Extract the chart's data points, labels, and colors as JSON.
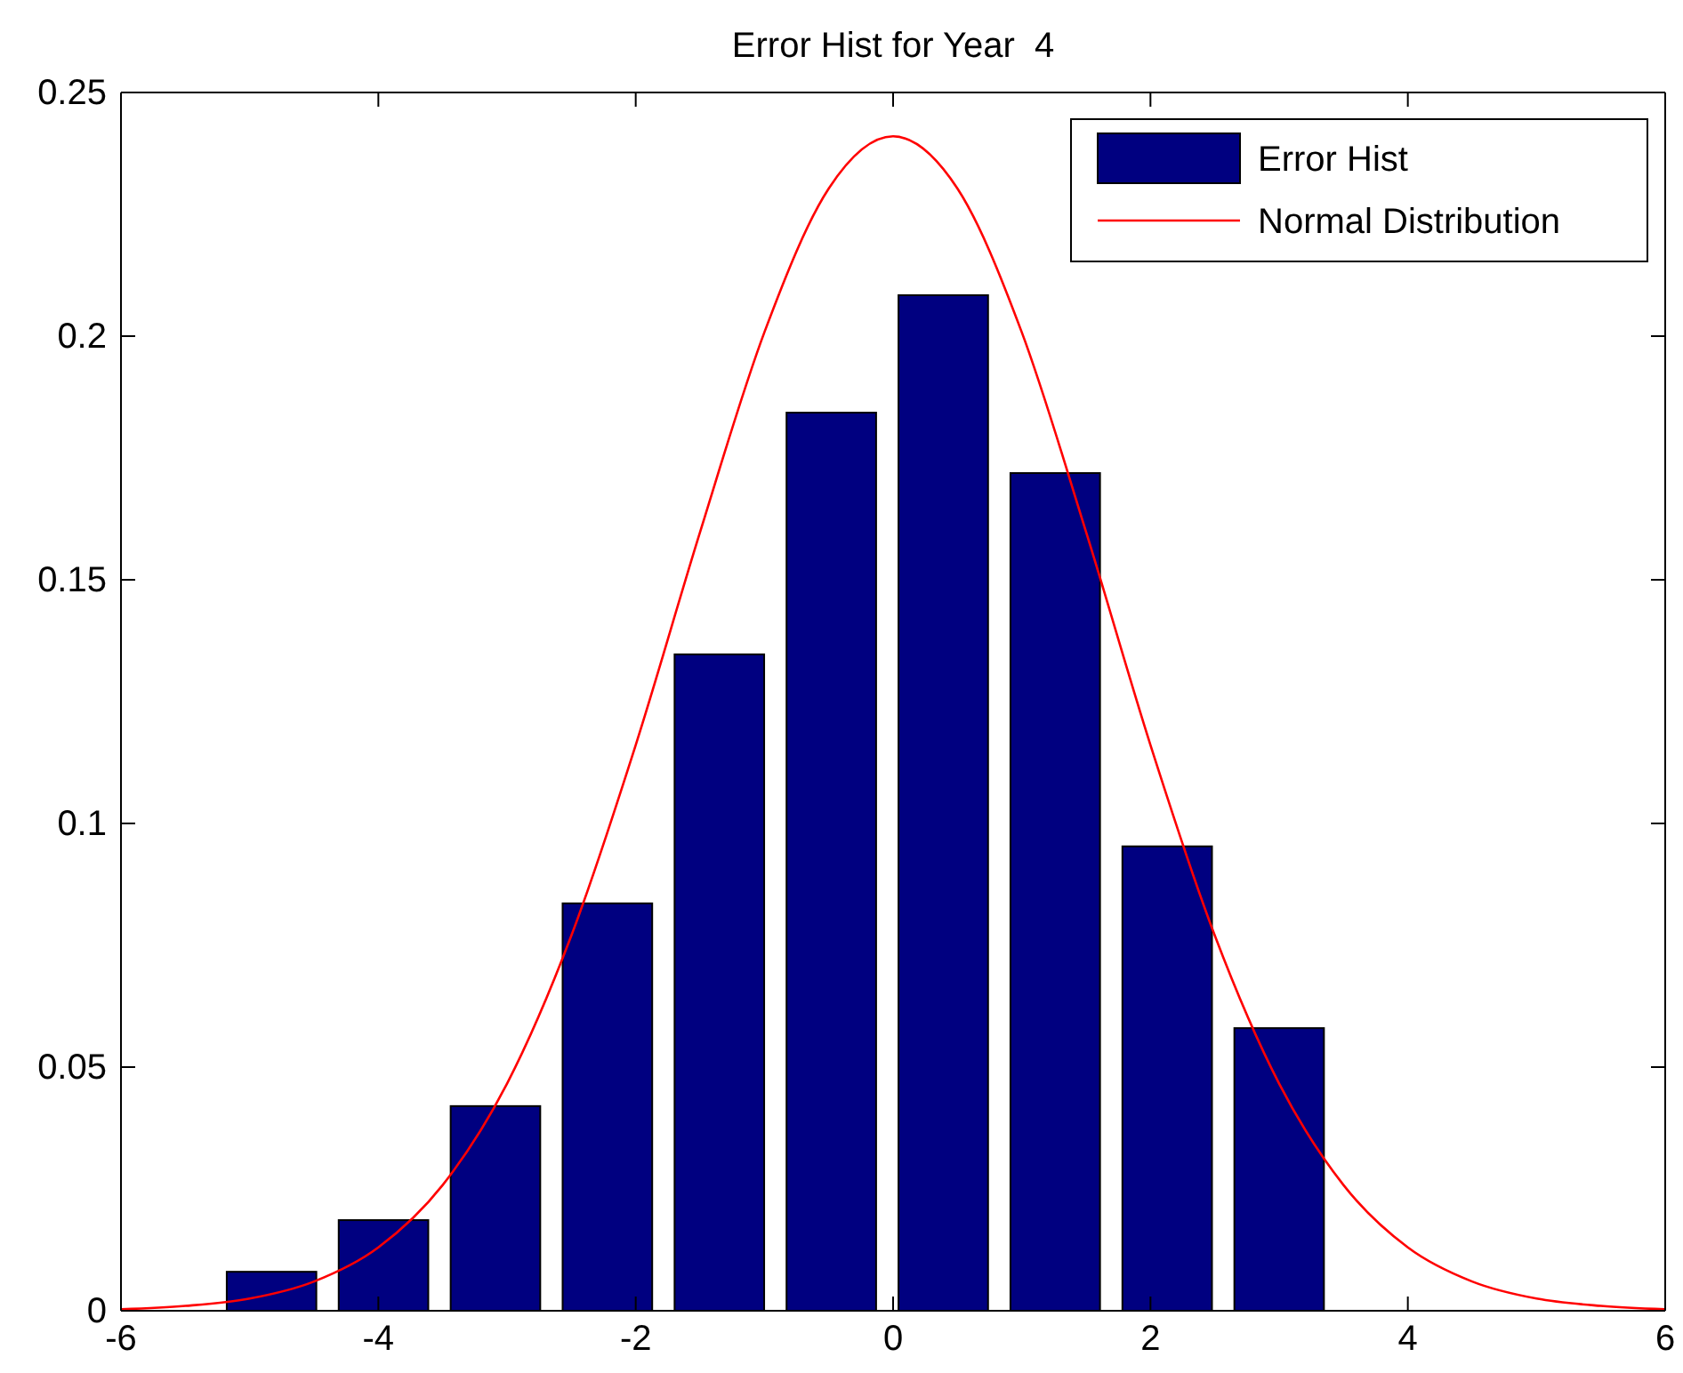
{
  "chart_data": {
    "type": "bar",
    "title": "Error Hist for Year  4",
    "xlim": [
      -6,
      6
    ],
    "xticks": [
      -6,
      -4,
      -2,
      0,
      2,
      4,
      6
    ],
    "ylim": [
      0,
      0.25
    ],
    "yticks": [
      0,
      0.05,
      0.1,
      0.15,
      0.2,
      0.25
    ],
    "grid": false,
    "legend": "top right",
    "series": [
      {
        "name": "Error Hist",
        "color": "#000080",
        "x": [
          -4.83,
          -3.96,
          -3.09,
          -2.22,
          -1.35,
          -0.48,
          0.39,
          1.26,
          2.13,
          3.0
        ],
        "values": [
          0.008,
          0.0186,
          0.042,
          0.0836,
          0.1347,
          0.1843,
          0.2084,
          0.1719,
          0.0953,
          0.058
        ]
      },
      {
        "name": "Normal Distribution",
        "type": "line",
        "color": "#ff0000",
        "x": [
          -6,
          -5.5,
          -5,
          -4.5,
          -4,
          -3.5,
          -3,
          -2.5,
          -2,
          -1.5,
          -1,
          -0.5,
          0,
          0.5,
          1,
          1.5,
          2,
          2.5,
          3,
          3.5,
          4,
          4.5,
          5,
          5.5,
          6
        ],
        "values": [
          0.0003,
          0.001,
          0.0025,
          0.006,
          0.013,
          0.0258,
          0.0466,
          0.077,
          0.1161,
          0.1598,
          0.2008,
          0.2303,
          0.241,
          0.2303,
          0.2008,
          0.1598,
          0.1161,
          0.077,
          0.0466,
          0.0258,
          0.013,
          0.006,
          0.0025,
          0.001,
          0.0003
        ]
      }
    ]
  }
}
